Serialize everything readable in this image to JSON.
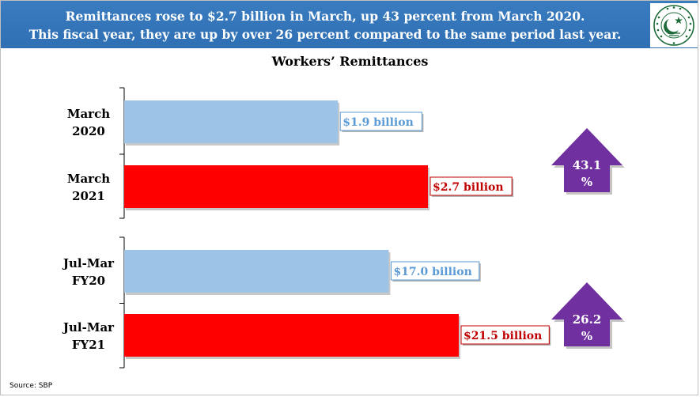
{
  "banner": {
    "line1": "Remittances rose to $2.7 billion in March, up 43 percent from March 2020.",
    "line2": "This fiscal year, they are up by over 26 percent compared to the same period last year.",
    "logo_text": "STATE BANK OF PAKISTAN"
  },
  "source": "Source: SBP",
  "colors": {
    "banner": "#2f6fb3",
    "prior_bar": "#9dc3e6",
    "current_bar": "#ff0000",
    "prior_label": "#5b9bd5",
    "current_label": "#c00000",
    "arrow": "#7030a0"
  },
  "chart_data": {
    "type": "bar",
    "orientation": "horizontal",
    "title": "Workers’ Remittances",
    "groups": [
      {
        "bars": [
          {
            "label_lines": [
              "March",
              "2020"
            ],
            "value": 1.9,
            "label": "$1.9 billion",
            "kind": "prior"
          },
          {
            "label_lines": [
              "March",
              "2021"
            ],
            "value": 2.7,
            "label": "$2.7 billion",
            "kind": "current"
          }
        ],
        "change": {
          "value": 43.1,
          "line1": "43.1",
          "line2": "%"
        }
      },
      {
        "bars": [
          {
            "label_lines": [
              "Jul-Mar",
              "FY20"
            ],
            "value": 17.0,
            "label": "$17.0 billion",
            "kind": "prior"
          },
          {
            "label_lines": [
              "Jul-Mar",
              "FY21"
            ],
            "value": 21.5,
            "label": "$21.5 billion",
            "kind": "current"
          }
        ],
        "change": {
          "value": 26.2,
          "line1": "26.2",
          "line2": "%"
        }
      }
    ],
    "unit": "billion USD"
  }
}
